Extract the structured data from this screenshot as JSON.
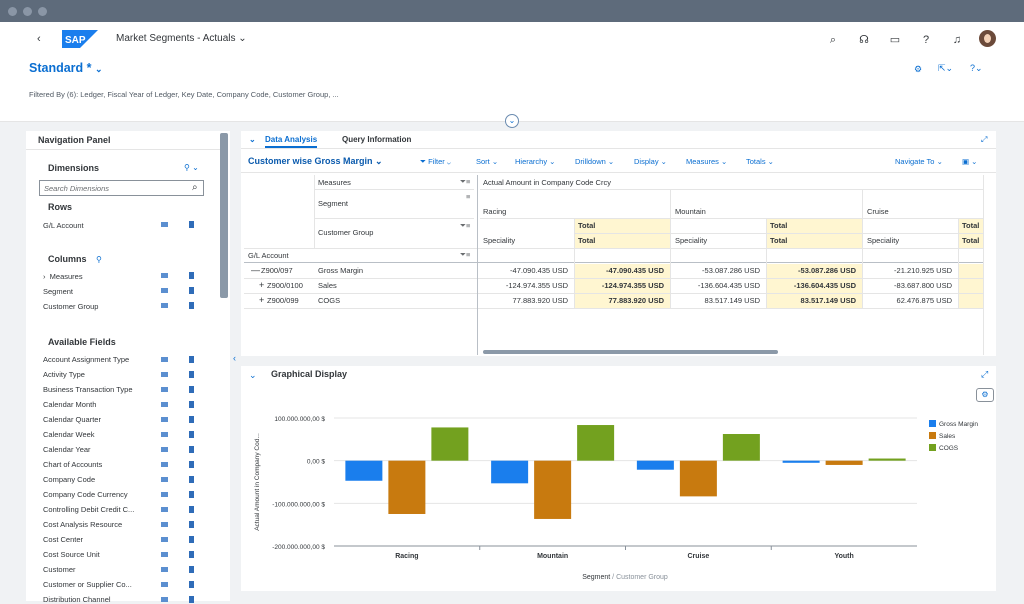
{
  "shell": {
    "app_title": "Market Segments - Actuals",
    "logo_text": "SAP"
  },
  "header": {
    "variant": "Standard *",
    "filtered_by": "Filtered By (6): Ledger, Fiscal Year of Ledger, Key Date, Company Code, Customer Group, ..."
  },
  "nav": {
    "title": "Navigation Panel",
    "dimensions_label": "Dimensions",
    "search_placeholder": "Search Dimensions",
    "rows_label": "Rows",
    "rows": [
      "G/L Account"
    ],
    "columns_label": "Columns",
    "columns": [
      "Measures",
      "Segment",
      "Customer Group"
    ],
    "available_label": "Available Fields",
    "available": [
      "Account Assignment Type",
      "Activity Type",
      "Business Transaction Type",
      "Calendar Month",
      "Calendar Quarter",
      "Calendar Week",
      "Calendar Year",
      "Chart of Accounts",
      "Company Code",
      "Company Code Currency",
      "Controlling Debit Credit C...",
      "Cost Analysis Resource",
      "Cost Center",
      "Cost Source Unit",
      "Customer",
      "Customer or Supplier Co...",
      "Distribution Channel"
    ]
  },
  "tabs": {
    "data_analysis": "Data Analysis",
    "query_info": "Query Information"
  },
  "toolbar": {
    "view_title": "Customer wise Gross Margin",
    "filter": "Filter",
    "sort": "Sort",
    "hierarchy": "Hierarchy",
    "drilldown": "Drilldown",
    "display": "Display",
    "measures": "Measures",
    "totals": "Totals",
    "navigate": "Navigate To"
  },
  "grid": {
    "measures_label": "Measures",
    "segment_label": "Segment",
    "customer_group_label": "Customer Group",
    "gl_label": "G/L Account",
    "amount_header": "Actual Amount in Company Code Crcy",
    "segments": [
      "Racing",
      "Mountain",
      "Cruise"
    ],
    "speciality": "Speciality",
    "total": "Total",
    "rows": [
      {
        "code": "Z900/097",
        "name": "Gross Margin",
        "sign": "—",
        "values": [
          "-47.090.435 USD",
          "-47.090.435 USD",
          "-53.087.286 USD",
          "-53.087.286 USD",
          "-21.210.925 USD"
        ]
      },
      {
        "code": "Z900/0100",
        "name": "Sales",
        "sign": "+",
        "values": [
          "-124.974.355 USD",
          "-124.974.355 USD",
          "-136.604.435 USD",
          "-136.604.435 USD",
          "-83.687.800 USD"
        ]
      },
      {
        "code": "Z900/099",
        "name": "COGS",
        "sign": "+",
        "values": [
          "77.883.920 USD",
          "77.883.920 USD",
          "83.517.149 USD",
          "83.517.149 USD",
          "62.476.875 USD"
        ]
      }
    ]
  },
  "graph": {
    "title": "Graphical Display"
  },
  "chart_data": {
    "type": "bar",
    "categories": [
      "Racing",
      "Mountain",
      "Cruise",
      "Youth"
    ],
    "series": [
      {
        "name": "Gross Margin",
        "color": "#1a7eed",
        "values": [
          -47090435,
          -53087286,
          -21210925,
          -5000000
        ]
      },
      {
        "name": "Sales",
        "color": "#c87a0f",
        "values": [
          -124974355,
          -136604435,
          -83687800,
          -10000000
        ]
      },
      {
        "name": "COGS",
        "color": "#73a11f",
        "values": [
          77883920,
          83517149,
          62476875,
          5000000
        ]
      }
    ],
    "ylabel": "Actual Amount in Company Cod...",
    "xlabel_main": "Segment",
    "xlabel_sep": " / ",
    "xlabel_sub": "Customer Group",
    "yticks": [
      "100.000.000,00 $",
      "0,00 $",
      "-100.000.000,00 $",
      "-200.000.000,00 $"
    ],
    "ylim": [
      -200000000,
      100000000
    ],
    "legend_position": "right"
  }
}
